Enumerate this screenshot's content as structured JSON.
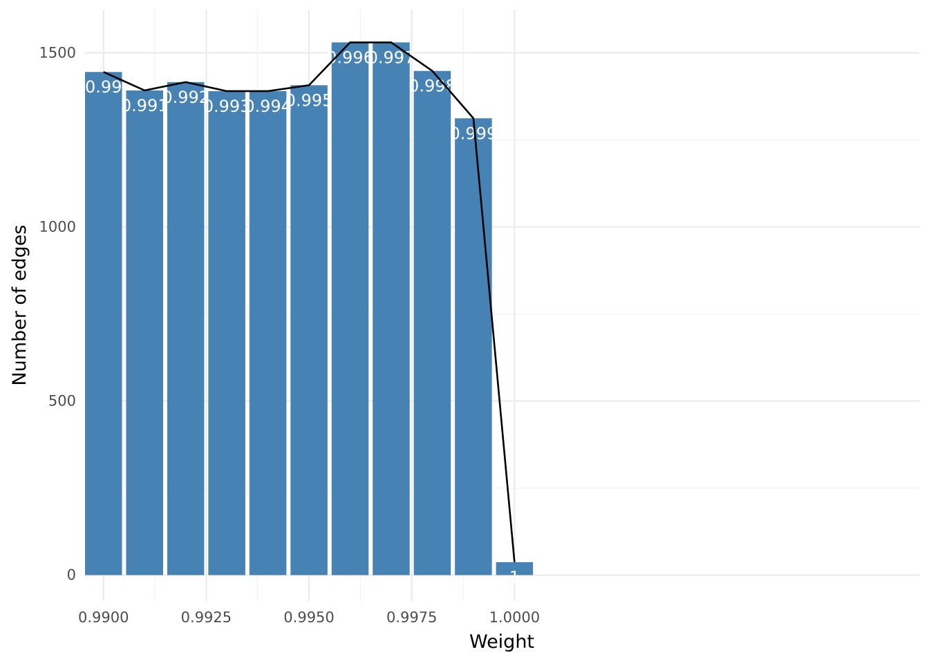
{
  "chart_data": {
    "type": "bar",
    "xlabel": "Weight",
    "ylabel": "Number of edges",
    "xlim": [
      0.98955,
      1.00985
    ],
    "ylim": [
      -74,
      1624
    ],
    "x_ticks": [
      0.99,
      0.9925,
      0.995,
      0.9975,
      1.0
    ],
    "x_tick_labels": [
      "0.9900",
      "0.9925",
      "0.9950",
      "0.9975",
      "1.0000"
    ],
    "y_ticks": [
      0,
      500,
      1000,
      1500
    ],
    "y_tick_labels": [
      "0",
      "500",
      "1000",
      "1500"
    ],
    "grid": true,
    "bar_color": "#4682b4",
    "line_color": "#000000",
    "bars": [
      {
        "x": 0.99,
        "value": 1445,
        "label": "0.99"
      },
      {
        "x": 0.991,
        "value": 1392,
        "label": "0.991"
      },
      {
        "x": 0.992,
        "value": 1416,
        "label": "0.992"
      },
      {
        "x": 0.993,
        "value": 1390,
        "label": "0.993"
      },
      {
        "x": 0.994,
        "value": 1390,
        "label": "0.994"
      },
      {
        "x": 0.995,
        "value": 1407,
        "label": "0.995"
      },
      {
        "x": 0.996,
        "value": 1530,
        "label": "0.996"
      },
      {
        "x": 0.997,
        "value": 1530,
        "label": "0.997"
      },
      {
        "x": 0.998,
        "value": 1448,
        "label": "0.998"
      },
      {
        "x": 0.999,
        "value": 1312,
        "label": "0.999"
      },
      {
        "x": 1.0,
        "value": 37,
        "label": "1"
      }
    ]
  }
}
